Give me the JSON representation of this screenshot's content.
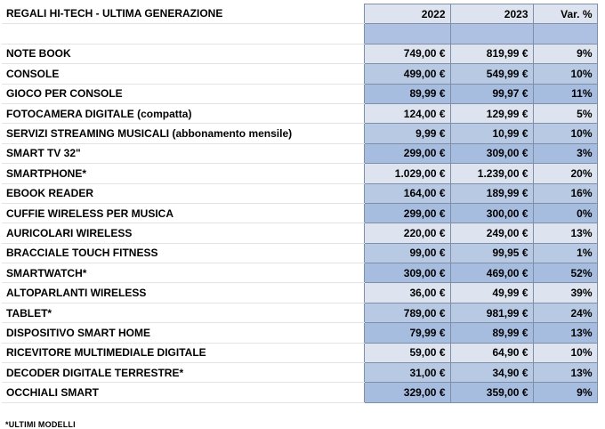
{
  "sheet": {
    "title": "REGALI HI-TECH - ULTIMA GENERAZIONE",
    "col_2022": "2022",
    "col_2023": "2023",
    "col_var": "Var. %",
    "rows": [
      {
        "label": "NOTE BOOK",
        "v2022": "749,00 €",
        "v2023": "819,99 €",
        "var": "9%"
      },
      {
        "label": "CONSOLE",
        "v2022": "499,00 €",
        "v2023": "549,99 €",
        "var": "10%"
      },
      {
        "label": "GIOCO PER CONSOLE",
        "v2022": "89,99 €",
        "v2023": "99,97 €",
        "var": "11%"
      },
      {
        "label": "FOTOCAMERA DIGITALE (compatta)",
        "v2022": "124,00 €",
        "v2023": "129,99 €",
        "var": "5%"
      },
      {
        "label": "SERVIZI STREAMING MUSICALI (abbonamento mensile)",
        "v2022": "9,99 €",
        "v2023": "10,99 €",
        "var": "10%"
      },
      {
        "label": "SMART TV 32\"",
        "v2022": "299,00 €",
        "v2023": "309,00 €",
        "var": "3%"
      },
      {
        "label": "SMARTPHONE*",
        "v2022": "1.029,00 €",
        "v2023": "1.239,00 €",
        "var": "20%"
      },
      {
        "label": "EBOOK READER",
        "v2022": "164,00 €",
        "v2023": "189,99 €",
        "var": "16%"
      },
      {
        "label": "CUFFIE WIRELESS PER MUSICA",
        "v2022": "299,00 €",
        "v2023": "300,00 €",
        "var": "0%"
      },
      {
        "label": "AURICOLARI WIRELESS",
        "v2022": "220,00 €",
        "v2023": "249,00 €",
        "var": "13%"
      },
      {
        "label": "BRACCIALE TOUCH FITNESS",
        "v2022": "99,00 €",
        "v2023": "99,95 €",
        "var": "1%"
      },
      {
        "label": "SMARTWATCH*",
        "v2022": "309,00 €",
        "v2023": "469,00 €",
        "var": "52%"
      },
      {
        "label": "ALTOPARLANTI WIRELESS",
        "v2022": "36,00 €",
        "v2023": "49,99 €",
        "var": "39%"
      },
      {
        "label": "TABLET*",
        "v2022": "789,00 €",
        "v2023": "981,99 €",
        "var": "24%"
      },
      {
        "label": "DISPOSITIVO SMART HOME",
        "v2022": "79,99 €",
        "v2023": "89,99 €",
        "var": "13%"
      },
      {
        "label": "RICEVITORE MULTIMEDIALE DIGITALE",
        "v2022": "59,00 €",
        "v2023": "64,90 €",
        "var": "10%"
      },
      {
        "label": "DECODER DIGITALE TERRESTRE*",
        "v2022": "31,00 €",
        "v2023": "34,90 €",
        "var": "13%"
      },
      {
        "label": "OCCHIALI SMART",
        "v2022": "329,00 €",
        "v2023": "359,00 €",
        "var": "9%"
      }
    ],
    "footnote": "*ULTIMI MODELLI"
  },
  "colors": {
    "header_fill": "#dde4ef",
    "blank_fill": "#aec1e3",
    "row_fill_light": "#dde4ef",
    "row_fill_mid": "#b8c9e4",
    "row_fill_dark": "#a7bde0",
    "cell_border": "#7f8fa8"
  }
}
